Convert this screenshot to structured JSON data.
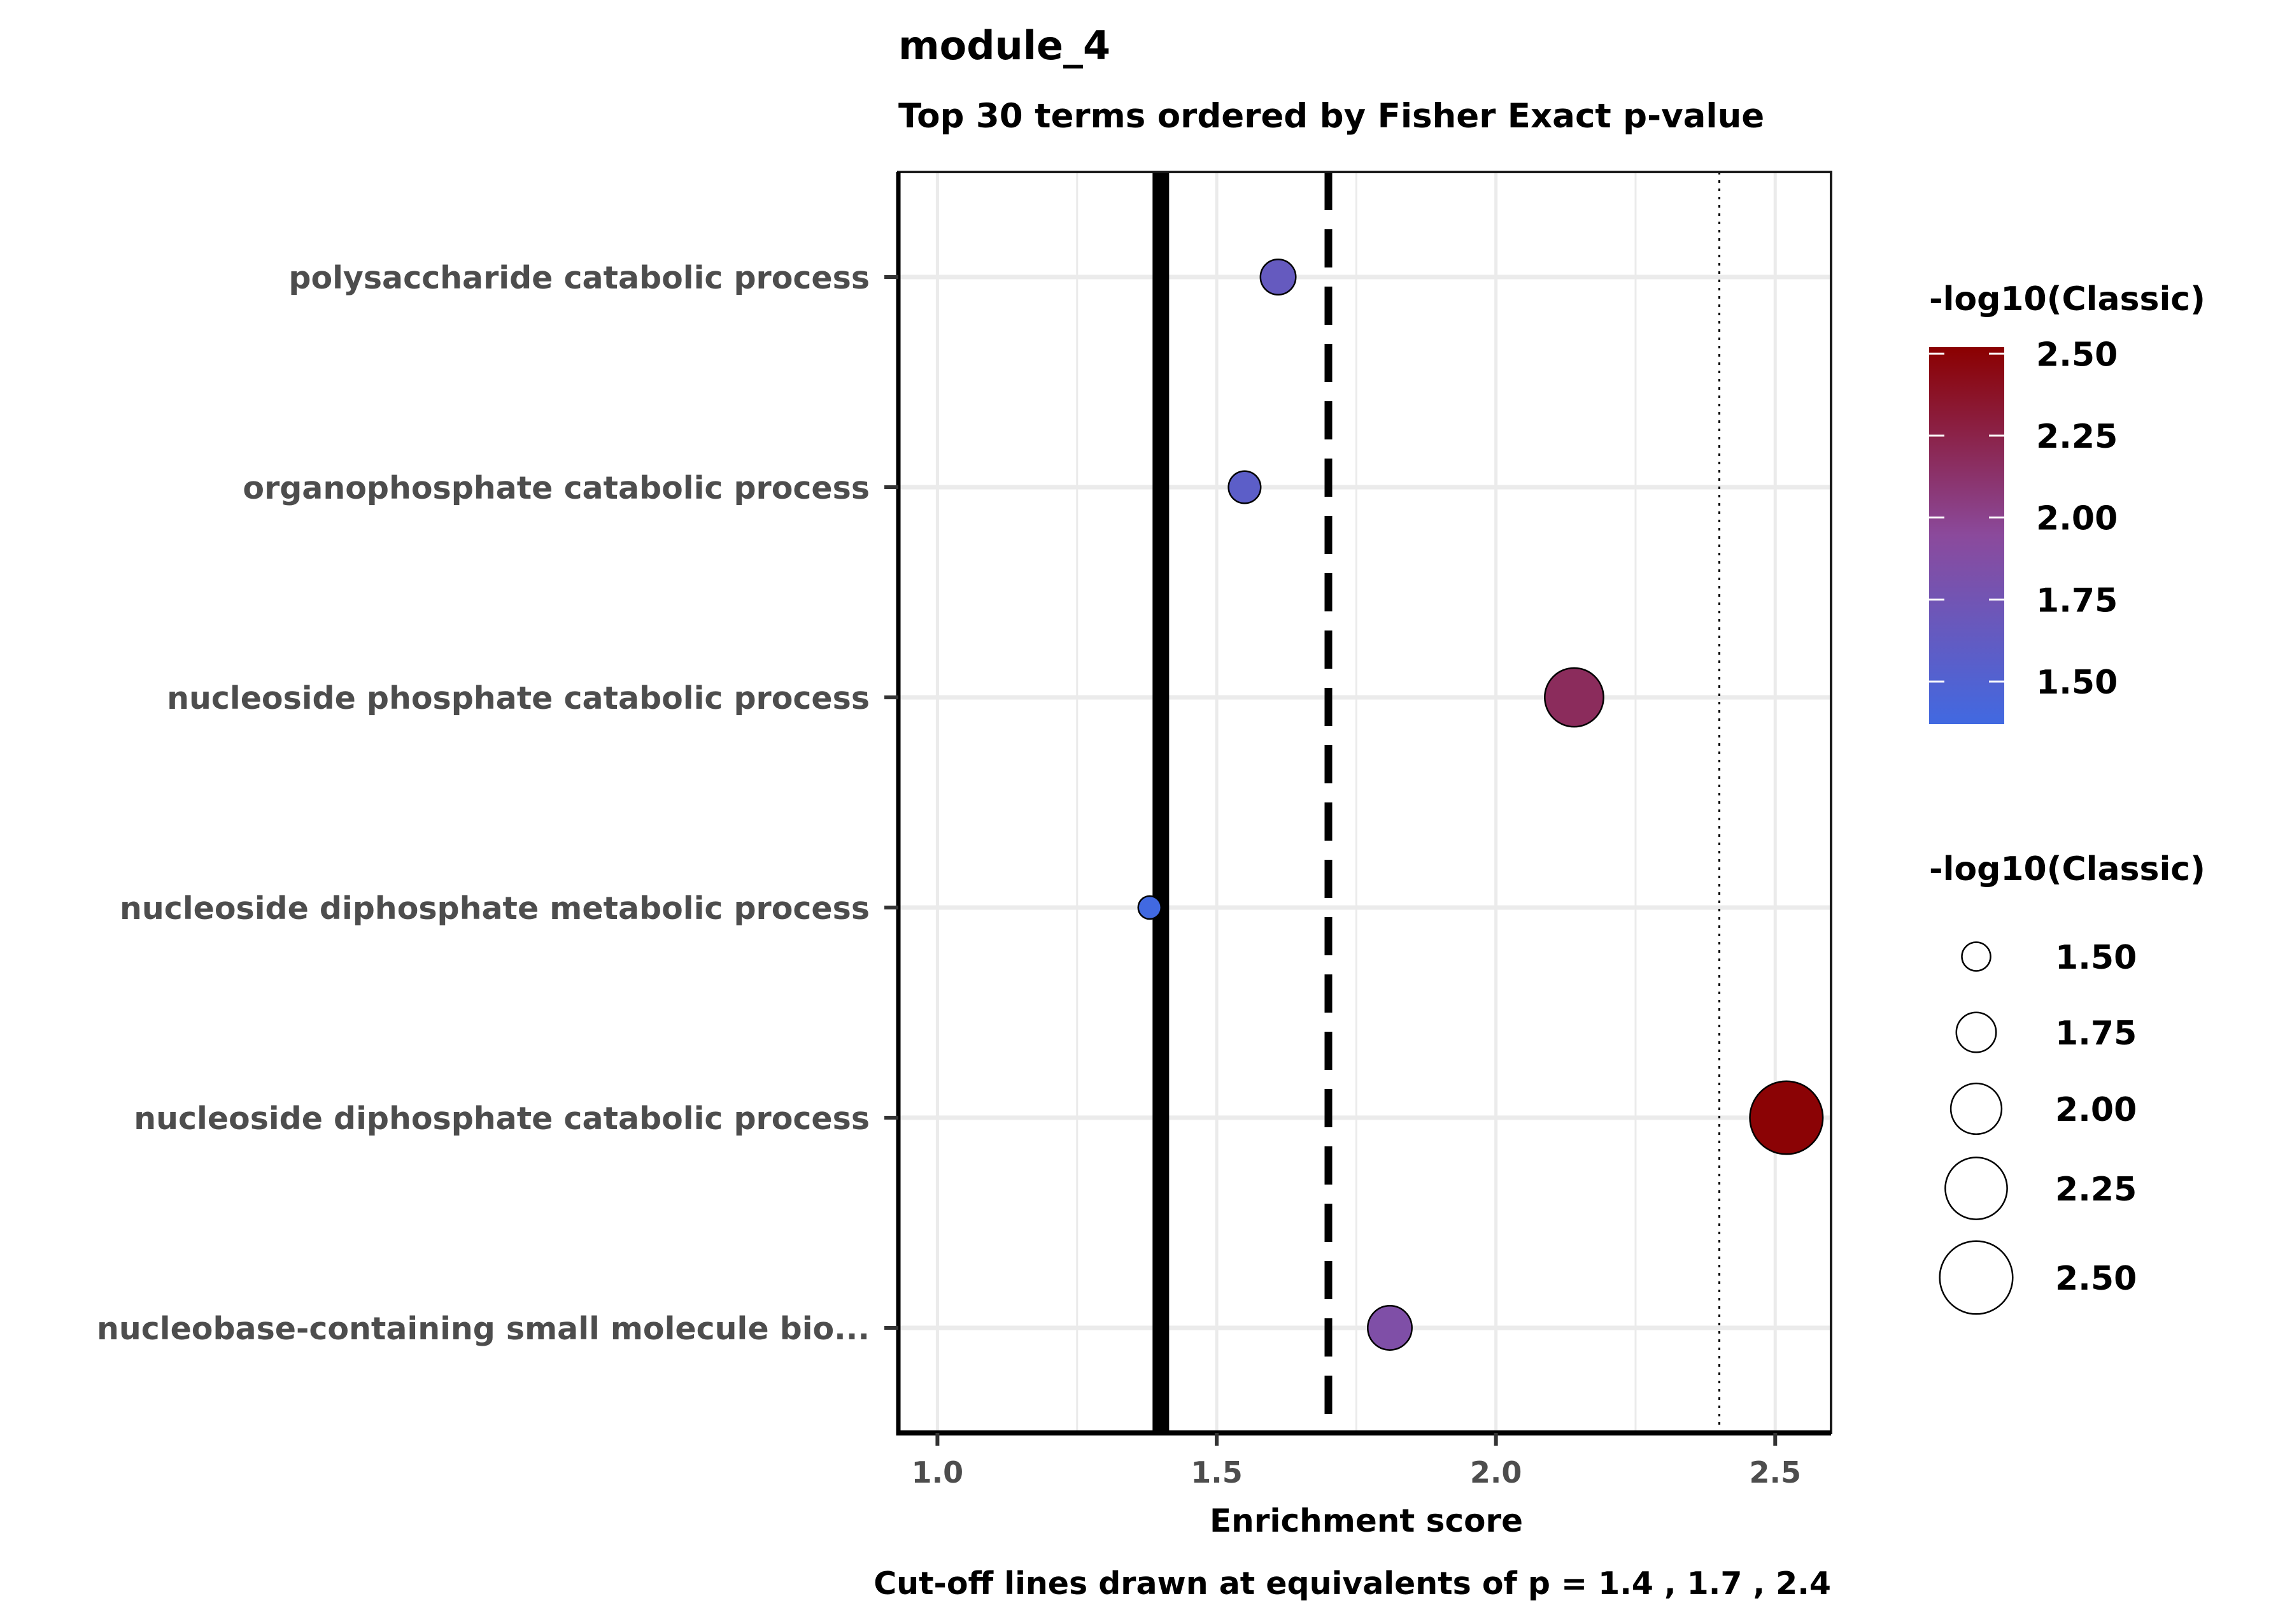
{
  "chart_data": {
    "type": "scatter",
    "title": "module_4",
    "subtitle": "Top 30 terms ordered by Fisher Exact p-value",
    "xlabel": "Enrichment score",
    "caption": "Cut-off lines drawn at equivalents of p = 1.4 , 1.7 , 2.4",
    "xlim": [
      0.93,
      2.6
    ],
    "x_ticks": [
      1.0,
      1.5,
      2.0,
      2.5
    ],
    "x_tick_labels": [
      "1.0",
      "1.5",
      "2.0",
      "2.5"
    ],
    "grid": true,
    "categories": [
      "polysaccharide catabolic process",
      "organophosphate catabolic process",
      "nucleoside phosphate catabolic process",
      "nucleoside diphosphate metabolic process",
      "nucleoside diphosphate catabolic process",
      "nucleobase-containing small molecule bio..."
    ],
    "points": [
      {
        "term": "polysaccharide catabolic process",
        "enrichment": 1.61,
        "neglog10_classic": 1.65
      },
      {
        "term": "organophosphate catabolic process",
        "enrichment": 1.55,
        "neglog10_classic": 1.58
      },
      {
        "term": "nucleoside phosphate catabolic process",
        "enrichment": 2.14,
        "neglog10_classic": 2.18
      },
      {
        "term": "nucleoside diphosphate metabolic process",
        "enrichment": 1.38,
        "neglog10_classic": 1.37
      },
      {
        "term": "nucleoside diphosphate catabolic process",
        "enrichment": 2.52,
        "neglog10_classic": 2.5
      },
      {
        "term": "nucleobase-containing small molecule bio...",
        "enrichment": 1.81,
        "neglog10_classic": 1.85
      }
    ],
    "cutoff_lines": [
      {
        "x": 1.4,
        "style": "solid"
      },
      {
        "x": 1.7,
        "style": "dashed"
      },
      {
        "x": 2.4,
        "style": "dotted"
      }
    ],
    "color_legend": {
      "title": "-log10(Classic)",
      "range": [
        1.37,
        2.52
      ],
      "low_color": "#4169E1",
      "mid_color": "#8B4A9C",
      "high_color": "#8B0000",
      "ticks": [
        1.5,
        1.75,
        2.0,
        2.25,
        2.5
      ],
      "tick_labels": [
        "1.50",
        "1.75",
        "2.00",
        "2.25",
        "2.50"
      ]
    },
    "size_legend": {
      "title": "-log10(Classic)",
      "values": [
        1.5,
        1.75,
        2.0,
        2.25,
        2.5
      ],
      "labels": [
        "1.50",
        "1.75",
        "2.00",
        "2.25",
        "2.50"
      ]
    }
  }
}
